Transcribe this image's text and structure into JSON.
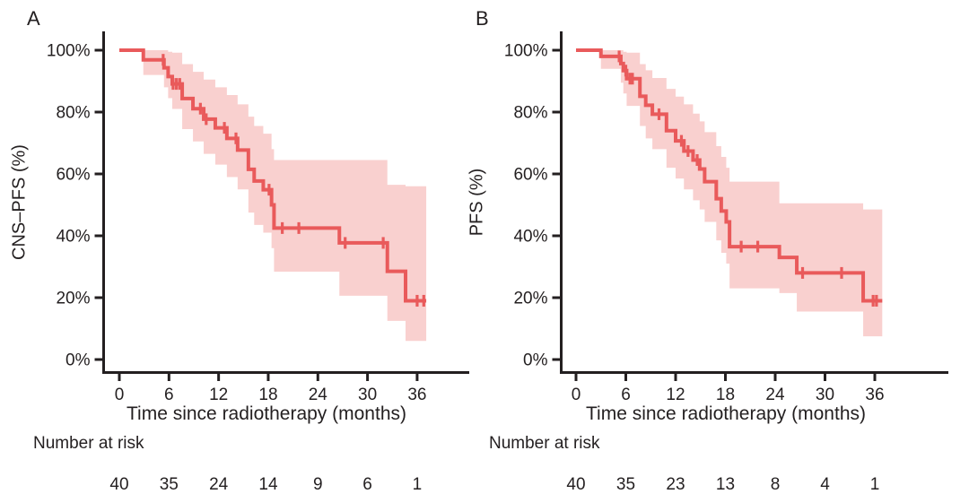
{
  "colors": {
    "curve": "#e95a5b",
    "confidence_band": "#f9d0cf",
    "axis": "#231f20",
    "text": "#231f20",
    "background": "#ffffff"
  },
  "chart_data": [
    {
      "type": "line",
      "subtype": "kaplan-meier-step-with-confidence-band",
      "panel_label": "A",
      "ylabel": "CNS–PFS (%)",
      "xlabel": "Time since radiotherapy (months)",
      "x_ticks": [
        0,
        6,
        12,
        18,
        24,
        30,
        36
      ],
      "y_tick_values": [
        0,
        20,
        40,
        60,
        80,
        100
      ],
      "y_tick_labels": [
        "0%",
        "20%",
        "40%",
        "60%",
        "80%",
        "100%"
      ],
      "xlim": [
        0,
        42
      ],
      "ylim": [
        0,
        100
      ],
      "grid": false,
      "legend": false,
      "steps_format": [
        "time_months",
        "survival_pct",
        "ci_lower_pct",
        "ci_upper_pct"
      ],
      "steps": [
        [
          0,
          100,
          100,
          100
        ],
        [
          2.9,
          96.9,
          92,
          100
        ],
        [
          5.4,
          94.3,
          88,
          100
        ],
        [
          5.9,
          91.5,
          84.5,
          99.5
        ],
        [
          6.4,
          89.1,
          81,
          99.2
        ],
        [
          7.6,
          84.4,
          74.5,
          95.5
        ],
        [
          8.9,
          81.1,
          70.5,
          93
        ],
        [
          10.2,
          77.7,
          66.5,
          90.5
        ],
        [
          11.6,
          74.9,
          63,
          88
        ],
        [
          13.0,
          71.5,
          59,
          85.5
        ],
        [
          14.3,
          67.7,
          55,
          82.5
        ],
        [
          15.6,
          61.5,
          47.5,
          78.5
        ],
        [
          16.3,
          57.7,
          43.5,
          75.5
        ],
        [
          17.4,
          54.9,
          41,
          73
        ],
        [
          18.4,
          50,
          36,
          68
        ],
        [
          18.7,
          42.5,
          28.4,
          64.5
        ],
        [
          26.6,
          37.7,
          20.6,
          64.5
        ],
        [
          32.4,
          28.5,
          12.5,
          56.5
        ],
        [
          34.6,
          19,
          6,
          56
        ]
      ],
      "censor_marks": [
        [
          5.3,
          96.9
        ],
        [
          6.5,
          89.1
        ],
        [
          6.9,
          89.1
        ],
        [
          7.3,
          89.1
        ],
        [
          9.8,
          81.1
        ],
        [
          10.5,
          77.7
        ],
        [
          12.7,
          74.9
        ],
        [
          14.1,
          71.5
        ],
        [
          18.1,
          54.9
        ],
        [
          19.7,
          42.5
        ],
        [
          21.7,
          42.5
        ],
        [
          27.3,
          37.7
        ],
        [
          31.9,
          37.7
        ],
        [
          36.0,
          19
        ],
        [
          36.8,
          19
        ]
      ],
      "end_time": 37.1,
      "risk_table": {
        "label": "Number at risk",
        "times": [
          0,
          6,
          12,
          18,
          24,
          30,
          36
        ],
        "values": [
          "40",
          "35",
          "24",
          "14",
          "9",
          "6",
          "1"
        ]
      }
    },
    {
      "type": "line",
      "subtype": "kaplan-meier-step-with-confidence-band",
      "panel_label": "B",
      "ylabel": "PFS (%)",
      "xlabel": "Time since radiotherapy (months)",
      "x_ticks": [
        0,
        6,
        12,
        18,
        24,
        30,
        36
      ],
      "y_tick_values": [
        0,
        20,
        40,
        60,
        80,
        100
      ],
      "y_tick_labels": [
        "0%",
        "20%",
        "40%",
        "60%",
        "80%",
        "100%"
      ],
      "xlim": [
        0,
        42
      ],
      "ylim": [
        0,
        100
      ],
      "grid": false,
      "legend": false,
      "steps_format": [
        "time_months",
        "survival_pct",
        "ci_lower_pct",
        "ci_upper_pct"
      ],
      "steps": [
        [
          0,
          100,
          100,
          100
        ],
        [
          3.0,
          98,
          94,
          100
        ],
        [
          5.4,
          95.7,
          89.5,
          100
        ],
        [
          5.7,
          93.4,
          86,
          99.5
        ],
        [
          6.1,
          90.8,
          82,
          99.2
        ],
        [
          7.7,
          85.1,
          75.5,
          95.5
        ],
        [
          8.4,
          82.2,
          71.5,
          93.5
        ],
        [
          9.2,
          79.3,
          68,
          91
        ],
        [
          10.9,
          74,
          62,
          87.5
        ],
        [
          12.0,
          70.7,
          58.5,
          85
        ],
        [
          13.0,
          67.4,
          55,
          82.5
        ],
        [
          14.1,
          64.5,
          51.5,
          79.5
        ],
        [
          14.9,
          61.6,
          48.5,
          77
        ],
        [
          15.5,
          57.5,
          44.5,
          73.5
        ],
        [
          16.9,
          52,
          38.5,
          69
        ],
        [
          17.5,
          48,
          34.5,
          65.5
        ],
        [
          18.1,
          44.5,
          31,
          62
        ],
        [
          18.5,
          36.5,
          23,
          57.5
        ],
        [
          24.5,
          33,
          21.5,
          50.5
        ],
        [
          26.6,
          28,
          15.5,
          50.5
        ],
        [
          34.6,
          19,
          7.5,
          48.5
        ]
      ],
      "censor_marks": [
        [
          5.2,
          98
        ],
        [
          6.0,
          93.4
        ],
        [
          6.5,
          90.8
        ],
        [
          6.8,
          90.8
        ],
        [
          10.0,
          79.3
        ],
        [
          12.7,
          70.7
        ],
        [
          13.5,
          67.4
        ],
        [
          14.6,
          64.5
        ],
        [
          19.9,
          36.5
        ],
        [
          21.9,
          36.5
        ],
        [
          27.3,
          28
        ],
        [
          32.0,
          28
        ],
        [
          35.8,
          19
        ],
        [
          36.2,
          19
        ]
      ],
      "end_time": 36.9,
      "risk_table": {
        "label": "Number at risk",
        "times": [
          0,
          6,
          12,
          18,
          24,
          30,
          36
        ],
        "values": [
          "40",
          "35",
          "23",
          "13",
          "8",
          "4",
          "1"
        ]
      }
    }
  ]
}
